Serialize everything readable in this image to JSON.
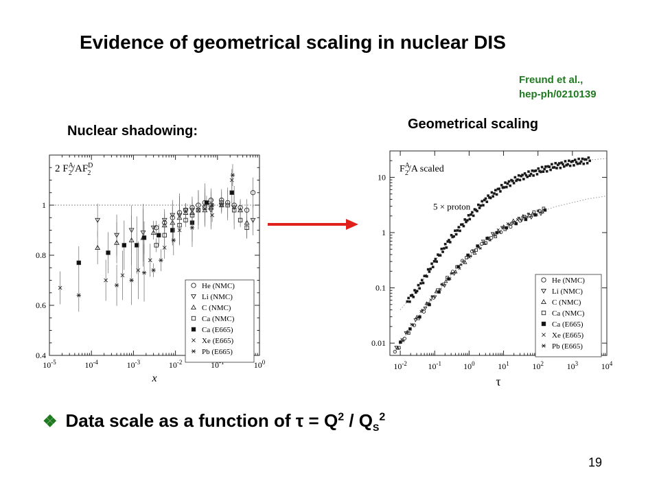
{
  "slide": {
    "title": "Evidence of geometrical scaling in nuclear DIS",
    "reference_line1": "Freund et al.,",
    "reference_line2": "hep-ph/0210139",
    "left_label": "Nuclear shadowing:",
    "right_label": "Geometrical scaling",
    "bullet_icon": "diamond-bullet-icon",
    "bullet_text": "Data scale as a function of τ = Q",
    "bullet_sup1": "2",
    "bullet_mid": " / Q",
    "bullet_sub": "S",
    "bullet_sup2": "2",
    "page_number": "19",
    "arrow_color": "#e0201b",
    "reference_color": "#1f7a1f"
  },
  "chart_data": [
    {
      "type": "scatter",
      "ylabel_text": "2 F2A/AF2D",
      "ylabel_parts": {
        "base": "2 F",
        "sub1": "2",
        "sup1": "A",
        "mid": "/AF",
        "sub2": "2",
        "sup2": "D"
      },
      "xlabel": "x",
      "xscale": "log",
      "xlim": [
        1e-05,
        1
      ],
      "ylim": [
        0.4,
        1.2
      ],
      "xtick_labels": [
        "10-5",
        "10-4",
        "10-3",
        "10-2",
        "10-1",
        "100"
      ],
      "xtick_values": [
        1e-05,
        0.0001,
        0.001,
        0.01,
        0.1,
        1
      ],
      "ytick_labels": [
        "0.4",
        "0.6",
        "0.8",
        "1"
      ],
      "ytick_values": [
        0.4,
        0.6,
        0.8,
        1.0
      ],
      "reference_line": 1.0,
      "legend_position": "bottom-right",
      "series": [
        {
          "name": "He (NMC)",
          "marker": "circle-open",
          "points": [
            [
              0.0035,
              0.91
            ],
            [
              0.0055,
              0.93
            ],
            [
              0.0085,
              0.95
            ],
            [
              0.0125,
              0.97
            ],
            [
              0.0175,
              0.98
            ],
            [
              0.025,
              0.99
            ],
            [
              0.035,
              1.0
            ],
            [
              0.05,
              1.01
            ],
            [
              0.07,
              1.02
            ],
            [
              0.125,
              1.02
            ],
            [
              0.175,
              1.01
            ],
            [
              0.25,
              1.0
            ],
            [
              0.35,
              0.99
            ],
            [
              0.5,
              0.98
            ],
            [
              0.7,
              1.05
            ]
          ]
        },
        {
          "name": "Li (NMC)",
          "marker": "triangle-down-open",
          "points": [
            [
              0.00014,
              0.94
            ],
            [
              0.0004,
              0.88
            ],
            [
              0.0009,
              0.9
            ],
            [
              0.0017,
              0.89
            ],
            [
              0.003,
              0.91
            ],
            [
              0.0055,
              0.94
            ],
            [
              0.0085,
              0.96
            ],
            [
              0.0125,
              0.96
            ],
            [
              0.0175,
              0.98
            ],
            [
              0.025,
              0.98
            ],
            [
              0.05,
              0.99
            ],
            [
              0.07,
              0.98
            ],
            [
              0.125,
              1.0
            ],
            [
              0.25,
              0.99
            ],
            [
              0.7,
              0.94
            ]
          ]
        },
        {
          "name": "C (NMC)",
          "marker": "triangle-up-open",
          "points": [
            [
              0.00014,
              0.83
            ],
            [
              0.0004,
              0.85
            ],
            [
              0.0009,
              0.86
            ],
            [
              0.0017,
              0.87
            ],
            [
              0.003,
              0.89
            ],
            [
              0.0055,
              0.92
            ],
            [
              0.0085,
              0.93
            ],
            [
              0.0125,
              0.95
            ],
            [
              0.0175,
              0.97
            ],
            [
              0.025,
              0.97
            ],
            [
              0.05,
              0.98
            ],
            [
              0.07,
              0.99
            ],
            [
              0.125,
              1.0
            ],
            [
              0.35,
              0.98
            ],
            [
              0.5,
              0.93
            ]
          ]
        },
        {
          "name": "Ca (NMC)",
          "marker": "square-open",
          "points": [
            [
              0.0035,
              0.84
            ],
            [
              0.0055,
              0.88
            ],
            [
              0.0085,
              0.9
            ],
            [
              0.0125,
              0.92
            ],
            [
              0.0175,
              0.94
            ],
            [
              0.025,
              0.96
            ],
            [
              0.035,
              0.98
            ],
            [
              0.05,
              0.99
            ],
            [
              0.07,
              1.0
            ],
            [
              0.125,
              1.01
            ],
            [
              0.175,
              1.0
            ],
            [
              0.25,
              0.98
            ],
            [
              0.35,
              0.94
            ],
            [
              0.5,
              0.91
            ]
          ]
        },
        {
          "name": "Ca (E665)",
          "marker": "square-filled",
          "points": [
            [
              5e-05,
              0.77
            ],
            [
              0.00025,
              0.81
            ],
            [
              0.0006,
              0.84
            ],
            [
              0.0012,
              0.84
            ],
            [
              0.0018,
              0.87
            ],
            [
              0.004,
              0.88
            ],
            [
              0.0085,
              0.9
            ],
            [
              0.025,
              0.93
            ],
            [
              0.055,
              1.01
            ],
            [
              0.22,
              1.05
            ]
          ]
        },
        {
          "name": "Xe (E665)",
          "marker": "cross",
          "points": [
            [
              1.8e-05,
              0.67
            ],
            [
              0.00022,
              0.7
            ],
            [
              0.00055,
              0.72
            ],
            [
              0.0013,
              0.74
            ],
            [
              0.0025,
              0.78
            ],
            [
              0.0055,
              0.83
            ],
            [
              0.0125,
              0.9
            ],
            [
              0.035,
              0.98
            ],
            [
              0.075,
              0.96
            ],
            [
              0.22,
              1.1
            ]
          ]
        },
        {
          "name": "Pb (E665)",
          "marker": "asterisk",
          "points": [
            [
              5e-05,
              0.64
            ],
            [
              0.0004,
              0.68
            ],
            [
              0.0009,
              0.7
            ],
            [
              0.0018,
              0.73
            ],
            [
              0.003,
              0.74
            ],
            [
              0.0045,
              0.78
            ],
            [
              0.009,
              0.86
            ],
            [
              0.025,
              0.91
            ],
            [
              0.075,
              1.0
            ],
            [
              0.23,
              1.12
            ]
          ]
        }
      ]
    },
    {
      "type": "scatter",
      "title_parts": {
        "base": "F",
        "sub": "2",
        "sup": "A",
        "rest": "/A  scaled"
      },
      "title_text": "F2A/A scaled",
      "annotation": "5 × proton",
      "xlabel": "τ",
      "xscale": "log",
      "yscale": "log",
      "xlim": [
        0.005,
        10000
      ],
      "ylim": [
        0.006,
        30
      ],
      "xtick_labels": [
        "10-2",
        "10-1",
        "100",
        "101",
        "102",
        "103",
        "104"
      ],
      "xtick_values": [
        0.01,
        0.1,
        1,
        10,
        100,
        1000,
        10000
      ],
      "ytick_labels": [
        "0.01",
        "0.1",
        "1",
        "10"
      ],
      "ytick_values": [
        0.01,
        0.1,
        1,
        10
      ],
      "legend_position": "bottom-right",
      "proton_curve_dotted": [
        [
          0.01,
          0.04
        ],
        [
          0.03,
          0.09
        ],
        [
          0.1,
          0.3
        ],
        [
          0.3,
          0.8
        ],
        [
          1,
          1.9
        ],
        [
          3,
          3.9
        ],
        [
          10,
          6.9
        ],
        [
          30,
          10
        ],
        [
          100,
          13
        ],
        [
          300,
          16
        ],
        [
          1000,
          18.5
        ],
        [
          3000,
          20.5
        ],
        [
          10000,
          22
        ]
      ],
      "nuclear_curve_dotted": [
        [
          0.007,
          0.007
        ],
        [
          0.02,
          0.019
        ],
        [
          0.05,
          0.042
        ],
        [
          0.1,
          0.074
        ],
        [
          0.3,
          0.17
        ],
        [
          1,
          0.38
        ],
        [
          3,
          0.7
        ],
        [
          10,
          1.2
        ],
        [
          30,
          1.75
        ],
        [
          100,
          2.3
        ],
        [
          300,
          2.9
        ],
        [
          1000,
          3.5
        ],
        [
          3000,
          4.1
        ],
        [
          10000,
          4.6
        ]
      ],
      "proton_band": {
        "x_range": [
          0.016,
          3200
        ],
        "label": "5 × proton"
      },
      "nuclear_band": {
        "x_range": [
          0.007,
          160
        ]
      },
      "series": [
        {
          "name": "He (NMC)",
          "marker": "circle-open"
        },
        {
          "name": "Li (NMC)",
          "marker": "triangle-down-open"
        },
        {
          "name": "C (NMC)",
          "marker": "triangle-up-open"
        },
        {
          "name": "Ca (NMC)",
          "marker": "square-open"
        },
        {
          "name": "Ca (E665)",
          "marker": "square-filled"
        },
        {
          "name": "Xe (E665)",
          "marker": "cross"
        },
        {
          "name": "Pb (E665)",
          "marker": "asterisk"
        }
      ]
    }
  ]
}
